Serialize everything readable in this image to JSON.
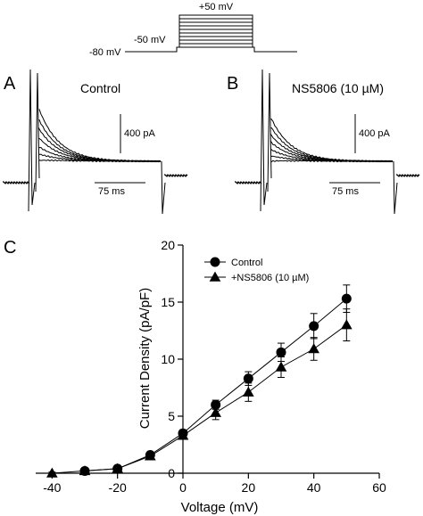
{
  "protocol": {
    "labels": [
      "+50 mV",
      "-50 mV",
      "-80 mV"
    ]
  },
  "panel_a": {
    "letter": "A",
    "title": "Control",
    "scale_current": "400 pA",
    "scale_time": "75 ms"
  },
  "panel_b": {
    "letter": "B",
    "title": "NS5806 (10 µM)",
    "scale_current": "400 pA",
    "scale_time": "75 ms"
  },
  "panel_c": {
    "letter": "C"
  },
  "chart_data": {
    "type": "line",
    "xlabel": "Voltage (mV)",
    "ylabel": "Current Density (pA/pF)",
    "xlim": [
      -45,
      60
    ],
    "ylim": [
      0,
      20
    ],
    "xticks": [
      -40,
      -20,
      0,
      20,
      40,
      60
    ],
    "yticks": [
      0,
      5,
      10,
      15,
      20
    ],
    "legend_position": "top-left",
    "grid": false,
    "series": [
      {
        "name": "Control",
        "marker": "circle",
        "x": [
          -30,
          -20,
          -10,
          0,
          10,
          20,
          30,
          40,
          50
        ],
        "y": [
          0.2,
          0.4,
          1.6,
          3.5,
          6.0,
          8.3,
          10.6,
          12.9,
          15.3
        ],
        "err": [
          0.1,
          0.1,
          0.2,
          0.3,
          0.4,
          0.6,
          0.8,
          1.1,
          1.2
        ]
      },
      {
        "name": "+NS5806 (10 µM)",
        "marker": "triangle",
        "x": [
          -40,
          -30,
          -20,
          -10,
          0,
          10,
          20,
          30,
          40,
          50
        ],
        "y": [
          0.0,
          0.2,
          0.4,
          1.5,
          3.3,
          5.3,
          7.1,
          9.3,
          10.9,
          13.0
        ],
        "err": [
          0.1,
          0.1,
          0.1,
          0.2,
          0.3,
          0.6,
          0.8,
          0.9,
          1.0,
          1.4
        ]
      }
    ]
  }
}
